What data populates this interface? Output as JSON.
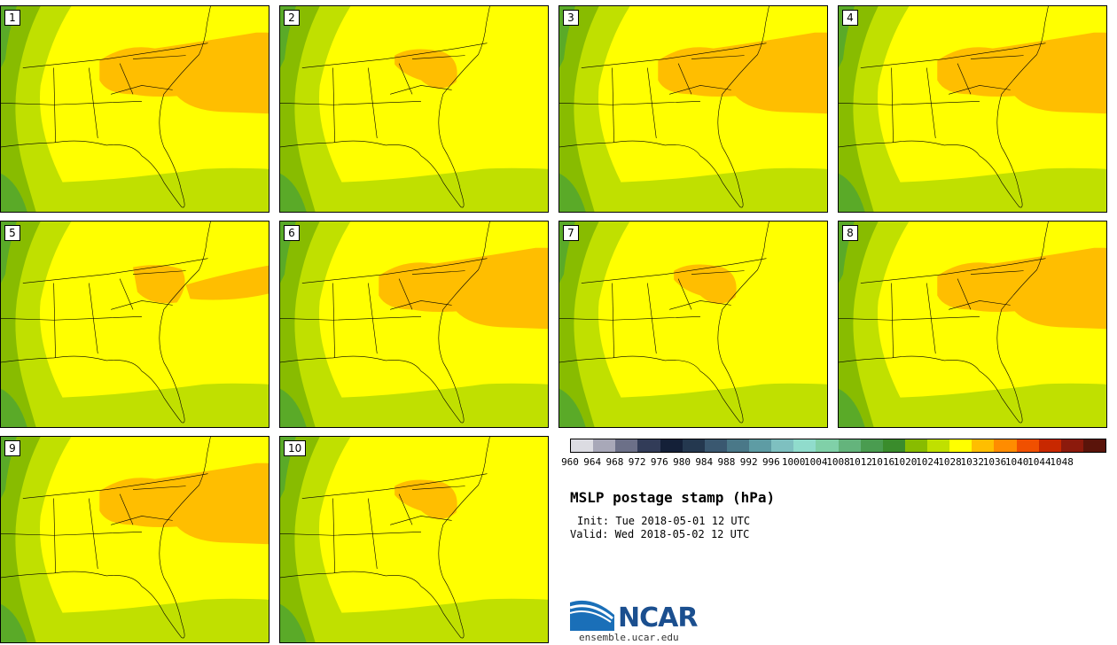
{
  "panels": [
    {
      "label": "1"
    },
    {
      "label": "2"
    },
    {
      "label": "3"
    },
    {
      "label": "4"
    },
    {
      "label": "5"
    },
    {
      "label": "6"
    },
    {
      "label": "7"
    },
    {
      "label": "8"
    },
    {
      "label": "9"
    },
    {
      "label": "10"
    }
  ],
  "colorbar": {
    "ticks": [
      "960",
      "964",
      "968",
      "972",
      "976",
      "980",
      "984",
      "988",
      "992",
      "996",
      "1000",
      "1004",
      "1008",
      "1012",
      "1016",
      "1020",
      "1024",
      "1028",
      "1032",
      "1036",
      "1040",
      "1044",
      "1048"
    ],
    "colors": [
      "#dcdce2",
      "#a8a8b8",
      "#6c7088",
      "#323c58",
      "#142038",
      "#24384f",
      "#3a5870",
      "#4a7888",
      "#5e9ca4",
      "#7ec0c0",
      "#90dccc",
      "#80d0a8",
      "#64b47c",
      "#4a9c50",
      "#3a8c2c",
      "#88bc00",
      "#c0e000",
      "#ffff00",
      "#ffbe00",
      "#ff8c00",
      "#f05000",
      "#c82800",
      "#8c1a0c",
      "#5a140a"
    ]
  },
  "title": "MSLP postage stamp (hPa)",
  "init": "Init: Tue 2018-05-01 12 UTC",
  "valid": "Valid: Wed 2018-05-02 12 UTC",
  "logo": {
    "name": "NCAR",
    "url": "ensemble.ucar.edu"
  }
}
